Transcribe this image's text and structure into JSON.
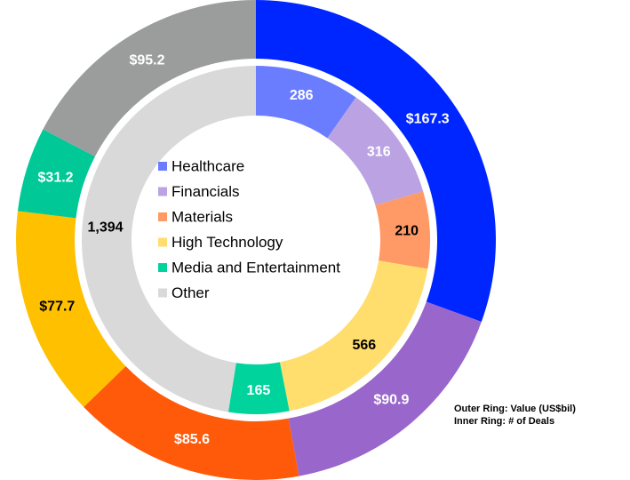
{
  "chart_data": {
    "type": "nested-donut",
    "categories": [
      "Healthcare",
      "Financials",
      "Materials",
      "High Technology",
      "Media and Entertainment",
      "Other"
    ],
    "rings": {
      "outer": {
        "values": [
          167.3,
          90.9,
          85.6,
          77.7,
          31.2,
          95.2
        ],
        "value_labels": [
          "$167.3",
          "$90.9",
          "$85.6",
          "$77.7",
          "$31.2",
          "$95.2"
        ],
        "colors": [
          "#0026ff",
          "#9966cc",
          "#ff5a0a",
          "#ffc000",
          "#00c896",
          "#9a9d9b"
        ],
        "label_colors": [
          "#ffffff",
          "#ffffff",
          "#ffffff",
          "#000000",
          "#ffffff",
          "#ffffff"
        ]
      },
      "inner": {
        "values": [
          286,
          316,
          210,
          566,
          165,
          1394
        ],
        "value_labels": [
          "286",
          "316",
          "210",
          "566",
          "165",
          "1,394"
        ],
        "colors": [
          "#6b7dff",
          "#bba3e3",
          "#ff9966",
          "#ffde6e",
          "#00d49c",
          "#d9d9d9"
        ],
        "label_colors": [
          "#ffffff",
          "#ffffff",
          "#000000",
          "#000000",
          "#ffffff",
          "#000000"
        ]
      }
    },
    "annotations": [
      "Outer Ring: Value (US$bil)",
      "Inner Ring: # of Deals"
    ]
  }
}
